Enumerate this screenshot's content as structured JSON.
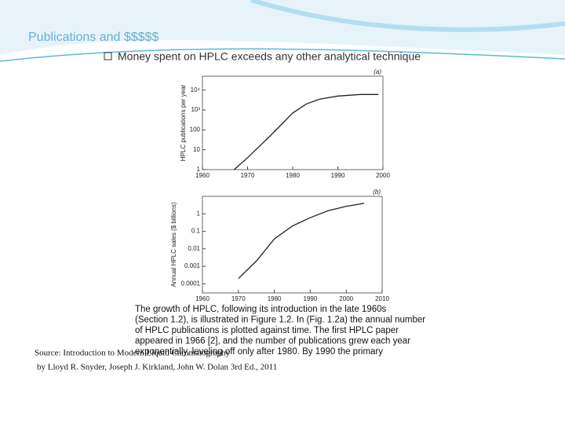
{
  "slide": {
    "title": "Publications and $$$$$",
    "bullet": "Money spent on HPLC exceeds any other analytical technique",
    "caption": [
      "The growth of HPLC, following its introduction in the late 1960s",
      "(Section 1.2), is illustrated in Figure 1.2. In (Fig. 1.2a) the annual number",
      "of HPLC publications is plotted against time. The first HPLC paper",
      "appeared in 1966 [2], and the number of publications grew each year",
      "exponentially, leveling off only after 1980. By 1990 the primary"
    ],
    "source": [
      "Source: Introduction to Modern Liquid Chromatography",
      "by Lloyd R. Snyder, Joseph J. Kirkland, John W. Dolan 3rd Ed., 2011"
    ]
  },
  "chart_data": [
    {
      "type": "line",
      "panel": "(a)",
      "y_label": "HPLC publications per year",
      "log_y": true,
      "x": [
        1967,
        1970,
        1975,
        1980,
        1983,
        1986,
        1990,
        1995,
        1999
      ],
      "values": [
        1,
        4,
        50,
        700,
        2000,
        3500,
        5000,
        6000,
        6000
      ],
      "color": "#222",
      "xlim": [
        1960,
        2000
      ],
      "xticks": [
        1960,
        1970,
        1980,
        1990,
        2000
      ],
      "ylim": [
        1,
        50000
      ],
      "yticks": [
        1,
        10,
        100,
        {
          "value": 1000,
          "label": "10³"
        },
        {
          "value": 10000,
          "label": "10⁴"
        }
      ]
    },
    {
      "type": "line",
      "panel": "(b)",
      "y_label": "Annual HPLC sales ($ billions)",
      "log_y": true,
      "x": [
        1970,
        1975,
        1980,
        1985,
        1990,
        1995,
        2000,
        2005
      ],
      "values": [
        0.0002,
        0.002,
        0.037,
        0.2,
        0.6,
        1.5,
        2.7,
        4
      ],
      "color": "#222",
      "xlim": [
        1960,
        2010
      ],
      "xticks": [
        1960,
        1970,
        1980,
        1990,
        2000,
        2010
      ],
      "ylim": [
        3e-05,
        10
      ],
      "yticks": [
        0.0001,
        0.001,
        0.01,
        0.1,
        1
      ]
    }
  ]
}
